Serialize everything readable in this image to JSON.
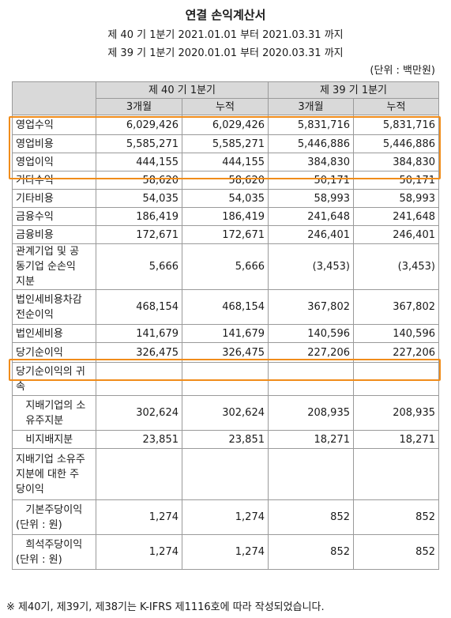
{
  "header": {
    "title": "연결 손익계산서",
    "period_current": "제 40 기 1분기 2021.01.01 부터 2021.03.31 까지",
    "period_prior": "제 39 기 1분기 2020.01.01 부터 2020.03.31 까지",
    "unit": "(단위 : 백만원)"
  },
  "columns": {
    "group1": "제 40 기 1분기",
    "group2": "제 39 기 1분기",
    "three_month": "3개월",
    "cumulative": "누적"
  },
  "rows": [
    {
      "label": "영업수익",
      "values": [
        "6,029,426",
        "6,029,426",
        "5,831,716",
        "5,831,716"
      ]
    },
    {
      "label": "영업비용",
      "values": [
        "5,585,271",
        "5,585,271",
        "5,446,886",
        "5,446,886"
      ]
    },
    {
      "label": "영업이익",
      "values": [
        "444,155",
        "444,155",
        "384,830",
        "384,830"
      ]
    },
    {
      "label": "기타수익",
      "values": [
        "58,620",
        "58,620",
        "50,171",
        "50,171"
      ]
    },
    {
      "label": "기타비용",
      "values": [
        "54,035",
        "54,035",
        "58,993",
        "58,993"
      ]
    },
    {
      "label": "금융수익",
      "values": [
        "186,419",
        "186,419",
        "241,648",
        "241,648"
      ]
    },
    {
      "label": "금융비용",
      "values": [
        "172,671",
        "172,671",
        "246,401",
        "246,401"
      ]
    },
    {
      "label": "관계기업 및 공\n동기업 순손익\n지분",
      "values": [
        "5,666",
        "5,666",
        "(3,453)",
        "(3,453)"
      ]
    },
    {
      "label": "법인세비용차감\n전순이익",
      "values": [
        "468,154",
        "468,154",
        "367,802",
        "367,802"
      ]
    },
    {
      "label": "법인세비용",
      "values": [
        "141,679",
        "141,679",
        "140,596",
        "140,596"
      ]
    },
    {
      "label": "당기순이익",
      "values": [
        "326,475",
        "326,475",
        "227,206",
        "227,206"
      ]
    },
    {
      "label": "당기순이익의 귀\n속",
      "values": [
        "",
        "",
        "",
        ""
      ]
    },
    {
      "label": "   지배기업의 소\n   유주지분",
      "values": [
        "302,624",
        "302,624",
        "208,935",
        "208,935"
      ]
    },
    {
      "label": "   비지배지분",
      "values": [
        "23,851",
        "23,851",
        "18,271",
        "18,271"
      ]
    },
    {
      "label": "지배기업 소유주\n지분에 대한 주\n당이익",
      "values": [
        "",
        "",
        "",
        ""
      ]
    },
    {
      "label": "   기본주당이익\n(단위 : 원)",
      "values": [
        "1,274",
        "1,274",
        "852",
        "852"
      ]
    },
    {
      "label": "   희석주당이익\n(단위 : 원)",
      "values": [
        "1,274",
        "1,274",
        "852",
        "852"
      ]
    }
  ],
  "footnote": "※ 제40기, 제39기, 제38기는 K-IFRS 제1116호에 따라 작성되었습니다.",
  "colors": {
    "highlight": "#f08c1a",
    "header_bg": "#d9d9d9"
  }
}
